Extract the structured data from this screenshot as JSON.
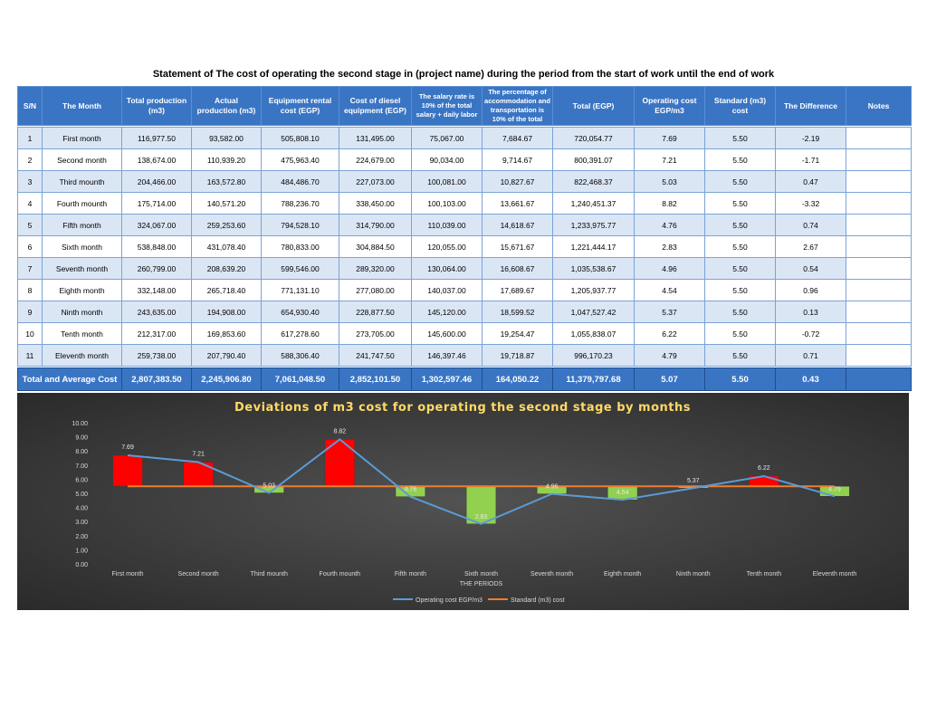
{
  "page_title": "Statement of The cost of operating the second stage in (project name) during the period from the start of work until the end of work",
  "table": {
    "headers": [
      "S/N",
      "The Month",
      "Total production (m3)",
      "Actual production (m3)",
      "Equipment rental cost (EGP)",
      "Cost of diesel equipment (EGP)",
      "The salary rate is 10% of the total salary + daily labor",
      "The percentage of accommodation and transportation is 10% of the total",
      "Total (EGP)",
      "Operating cost EGP/m3",
      "Standard (m3) cost",
      "The Difference",
      "Notes"
    ],
    "rows": [
      [
        "1",
        "First month",
        "116,977.50",
        "93,582.00",
        "505,808.10",
        "131,495.00",
        "75,067.00",
        "7,684.67",
        "720,054.77",
        "7.69",
        "5.50",
        "-2.19",
        ""
      ],
      [
        "2",
        "Second month",
        "138,674.00",
        "110,939.20",
        "475,963.40",
        "224,679.00",
        "90,034.00",
        "9,714.67",
        "800,391.07",
        "7.21",
        "5.50",
        "-1.71",
        ""
      ],
      [
        "3",
        "Third mounth",
        "204,466.00",
        "163,572.80",
        "484,486.70",
        "227,073.00",
        "100,081.00",
        "10,827.67",
        "822,468.37",
        "5.03",
        "5.50",
        "0.47",
        ""
      ],
      [
        "4",
        "Fourth mounth",
        "175,714.00",
        "140,571.20",
        "788,236.70",
        "338,450.00",
        "100,103.00",
        "13,661.67",
        "1,240,451.37",
        "8.82",
        "5.50",
        "-3.32",
        ""
      ],
      [
        "5",
        "Fifth month",
        "324,067.00",
        "259,253.60",
        "794,528.10",
        "314,790.00",
        "110,039.00",
        "14,618.67",
        "1,233,975.77",
        "4.76",
        "5.50",
        "0.74",
        ""
      ],
      [
        "6",
        "Sixth month",
        "538,848.00",
        "431,078.40",
        "780,833.00",
        "304,884.50",
        "120,055.00",
        "15,671.67",
        "1,221,444.17",
        "2.83",
        "5.50",
        "2.67",
        ""
      ],
      [
        "7",
        "Seventh month",
        "260,799.00",
        "208,639.20",
        "599,546.00",
        "289,320.00",
        "130,064.00",
        "16,608.67",
        "1,035,538.67",
        "4.96",
        "5.50",
        "0.54",
        ""
      ],
      [
        "8",
        "Eighth month",
        "332,148.00",
        "265,718.40",
        "771,131.10",
        "277,080.00",
        "140,037.00",
        "17,689.67",
        "1,205,937.77",
        "4.54",
        "5.50",
        "0.96",
        ""
      ],
      [
        "9",
        "Ninth month",
        "243,635.00",
        "194,908.00",
        "654,930.40",
        "228,877.50",
        "145,120.00",
        "18,599.52",
        "1,047,527.42",
        "5.37",
        "5.50",
        "0.13",
        ""
      ],
      [
        "10",
        "Tenth month",
        "212,317.00",
        "169,853.60",
        "617,278.60",
        "273,705.00",
        "145,600.00",
        "19,254.47",
        "1,055,838.07",
        "6.22",
        "5.50",
        "-0.72",
        ""
      ],
      [
        "11",
        "Eleventh month",
        "259,738.00",
        "207,790.40",
        "588,306.40",
        "241,747.50",
        "146,397.46",
        "19,718.87",
        "996,170.23",
        "4.79",
        "5.50",
        "0.71",
        ""
      ]
    ],
    "total_label": "Total and Average Cost",
    "totals": [
      "2,807,383.50",
      "2,245,906.80",
      "7,061,048.50",
      "2,852,101.50",
      "1,302,597.46",
      "164,050.22",
      "11,379,797.68",
      "5.07",
      "5.50",
      "0.43",
      ""
    ]
  },
  "chart_data": {
    "type": "line",
    "title": "Deviations of m3 cost for operating the second stage by months",
    "xlabel": "THE PERIODS",
    "ylabel": "",
    "ylim": [
      0,
      10
    ],
    "yticks": [
      "0.00",
      "1.00",
      "2.00",
      "3.00",
      "4.00",
      "5.00",
      "6.00",
      "7.00",
      "8.00",
      "9.00",
      "10.00"
    ],
    "categories": [
      "First month",
      "Second month",
      "Third mounth",
      "Fourth mounth",
      "Fifth month",
      "Sixth month",
      "Seventh month",
      "Eighth month",
      "Ninth month",
      "Tenth month",
      "Eleventh month"
    ],
    "series": [
      {
        "name": "Operating cost EGP/m3",
        "values": [
          7.69,
          7.21,
          5.03,
          8.82,
          4.76,
          2.83,
          4.96,
          4.54,
          5.37,
          6.22,
          4.79
        ],
        "color": "#5b9bd5"
      },
      {
        "name": "Standard (m3) cost",
        "values": [
          5.5,
          5.5,
          5.5,
          5.5,
          5.5,
          5.5,
          5.5,
          5.5,
          5.5,
          5.5,
          5.5
        ],
        "color": "#ed7d31"
      }
    ],
    "data_labels": [
      "7.69",
      "7.21",
      "5.03",
      "8.82",
      "4.76",
      "2.83",
      "4.96",
      "4.54",
      "5.37",
      "6.22",
      "4.79"
    ],
    "up_bar_color": "#92d050",
    "down_bar_color": "#ff0000",
    "legend": "bottom",
    "grid": false,
    "title_color": "#ffd966"
  }
}
